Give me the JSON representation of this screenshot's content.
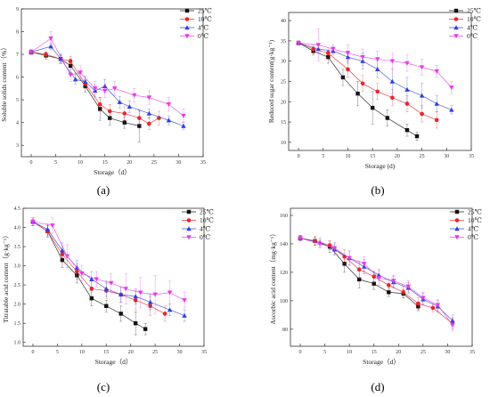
{
  "colors": {
    "25C": "#111111",
    "10C": "#e8262a",
    "4C": "#2f3fdc",
    "0C": "#e83ae6"
  },
  "chart_data": [
    {
      "id": "a",
      "label": "(a)",
      "type": "line",
      "xlabel": "Storage（d）",
      "ylabel": "Soluble solids content（%）",
      "xlim": [
        -2,
        35
      ],
      "ylim": [
        2.5,
        9
      ],
      "xticks": [
        "0",
        "5",
        "10",
        "15",
        "20",
        "25",
        "30",
        "35"
      ],
      "yticks": [
        "3",
        "4",
        "5",
        "6",
        "7",
        "8",
        "9"
      ],
      "legend": "top-right",
      "series": [
        {
          "name": "25℃",
          "marker": "square",
          "color": "#111111",
          "x": [
            0,
            3,
            6,
            8,
            11,
            14,
            16,
            19,
            22
          ],
          "y": [
            7.1,
            6.95,
            6.8,
            6.5,
            5.6,
            4.6,
            4.2,
            4.0,
            3.85
          ],
          "err": [
            0.1,
            0.15,
            0.2,
            0.3,
            0.25,
            0.5,
            0.3,
            0.25,
            0.7
          ]
        },
        {
          "name": "10℃",
          "marker": "circle",
          "color": "#e8262a",
          "x": [
            0,
            3,
            6,
            8,
            11,
            14,
            16,
            19,
            22,
            24,
            26
          ],
          "y": [
            7.1,
            7.0,
            6.8,
            6.7,
            5.7,
            4.8,
            4.5,
            4.4,
            4.2,
            3.95,
            4.2
          ],
          "err": [
            0.1,
            0.1,
            0.15,
            0.2,
            0.2,
            0.3,
            0.3,
            0.3,
            0.3,
            0.25,
            0.3
          ]
        },
        {
          "name": "4℃",
          "marker": "triangle-up",
          "color": "#2f3fdc",
          "x": [
            0,
            4,
            6,
            9,
            11,
            13,
            15,
            18,
            20,
            24,
            28,
            31
          ],
          "y": [
            7.1,
            7.35,
            6.8,
            5.9,
            5.8,
            5.4,
            5.6,
            4.9,
            4.7,
            4.4,
            4.1,
            3.85
          ],
          "err": [
            0.1,
            0.15,
            0.2,
            0.2,
            0.25,
            0.25,
            0.3,
            0.25,
            0.25,
            0.2,
            0.2,
            0.15
          ]
        },
        {
          "name": "0℃",
          "marker": "triangle-down",
          "color": "#e83ae6",
          "x": [
            0,
            4,
            8,
            10,
            13,
            15,
            17,
            21,
            24,
            28,
            31
          ],
          "y": [
            7.1,
            7.7,
            6.1,
            6.2,
            5.5,
            5.4,
            5.5,
            5.2,
            5.1,
            4.8,
            4.3
          ],
          "err": [
            0.1,
            0.3,
            0.3,
            0.3,
            0.3,
            0.3,
            0.3,
            0.3,
            0.3,
            0.3,
            0.3
          ]
        }
      ]
    },
    {
      "id": "b",
      "label": "(b)",
      "type": "line",
      "xlabel": "Storage (d)",
      "ylabel": "Reduced sugar content(g·kg⁻¹)",
      "xlim": [
        -2,
        35
      ],
      "ylim": [
        8,
        42
      ],
      "xticks": [
        "0",
        "5",
        "10",
        "15",
        "20",
        "25",
        "30",
        "35"
      ],
      "yticks": [
        "10",
        "15",
        "20",
        "25",
        "30",
        "35",
        "40"
      ],
      "legend": "top-right",
      "series": [
        {
          "name": "25℃",
          "marker": "square",
          "color": "#111111",
          "x": [
            0,
            3,
            6,
            9,
            12,
            15,
            18,
            22,
            24
          ],
          "y": [
            34.5,
            32.5,
            31.0,
            26.0,
            22.0,
            18.5,
            16.0,
            13.0,
            11.5
          ],
          "err": [
            0.5,
            1.0,
            1.5,
            2.0,
            3.0,
            4.0,
            2.0,
            1.5,
            1.0
          ]
        },
        {
          "name": "10℃",
          "marker": "circle",
          "color": "#e8262a",
          "x": [
            0,
            3,
            6,
            10,
            13,
            16,
            19,
            22,
            25,
            28
          ],
          "y": [
            34.5,
            33.0,
            32.0,
            28.0,
            24.5,
            22.5,
            21.0,
            19.5,
            17.0,
            15.5
          ],
          "err": [
            0.5,
            1.0,
            1.0,
            2.0,
            2.0,
            2.0,
            2.0,
            2.0,
            2.0,
            2.0
          ]
        },
        {
          "name": "4℃",
          "marker": "triangle-up",
          "color": "#2f3fdc",
          "x": [
            0,
            4,
            7,
            10,
            13,
            16,
            19,
            22,
            25,
            28,
            31
          ],
          "y": [
            34.5,
            33.0,
            32.5,
            31.0,
            30.0,
            28.0,
            25.0,
            23.0,
            21.5,
            19.5,
            18.0
          ],
          "err": [
            0.5,
            1.0,
            1.0,
            1.5,
            2.0,
            2.0,
            3.0,
            3.0,
            3.0,
            2.0,
            1.0
          ]
        },
        {
          "name": "0℃",
          "marker": "triangle-down",
          "color": "#e83ae6",
          "x": [
            0,
            4,
            7,
            10,
            13,
            16,
            19,
            22,
            25,
            28,
            31
          ],
          "y": [
            34.5,
            34.0,
            33.0,
            32.0,
            31.0,
            30.5,
            30.0,
            29.5,
            28.5,
            27.5,
            23.5
          ],
          "err": [
            0.5,
            4.0,
            1.0,
            2.0,
            2.0,
            2.0,
            2.0,
            2.0,
            2.0,
            1.5,
            1.5
          ]
        }
      ]
    },
    {
      "id": "c",
      "label": "(c)",
      "type": "line",
      "xlabel": "Storage（d）",
      "ylabel": "Titratable acid content（g·kg⁻¹）",
      "xlim": [
        -2,
        35
      ],
      "ylim": [
        0.9,
        4.5
      ],
      "xticks": [
        "0",
        "5",
        "10",
        "15",
        "20",
        "25",
        "30",
        "35"
      ],
      "yticks": [
        "1.0",
        "1.5",
        "2.0",
        "2.5",
        "3.0",
        "3.5",
        "4.0",
        "4.5"
      ],
      "legend": "top-right",
      "series": [
        {
          "name": "25℃",
          "marker": "square",
          "color": "#111111",
          "x": [
            0,
            3,
            6,
            9,
            12,
            15,
            18,
            21,
            23
          ],
          "y": [
            4.15,
            3.9,
            3.15,
            2.75,
            2.15,
            1.95,
            1.75,
            1.5,
            1.35
          ],
          "err": [
            0.1,
            0.15,
            0.2,
            0.2,
            0.2,
            0.15,
            0.2,
            0.3,
            0.15
          ]
        },
        {
          "name": "10℃",
          "marker": "circle",
          "color": "#e8262a",
          "x": [
            0,
            3,
            6,
            9,
            12,
            15,
            18,
            21,
            24,
            27
          ],
          "y": [
            4.15,
            3.9,
            3.3,
            2.85,
            2.4,
            2.35,
            2.25,
            2.1,
            1.95,
            1.75
          ],
          "err": [
            0.1,
            0.15,
            0.2,
            0.2,
            0.2,
            0.2,
            0.2,
            0.25,
            0.25,
            0.2
          ]
        },
        {
          "name": "4℃",
          "marker": "triangle-up",
          "color": "#2f3fdc",
          "x": [
            0,
            3,
            6,
            9,
            12,
            15,
            18,
            21,
            24,
            28,
            31
          ],
          "y": [
            4.15,
            3.95,
            3.4,
            2.95,
            2.65,
            2.4,
            2.25,
            2.2,
            2.05,
            1.85,
            1.7
          ],
          "err": [
            0.1,
            0.15,
            0.2,
            0.2,
            0.2,
            0.2,
            0.2,
            0.2,
            0.2,
            0.15,
            0.15
          ]
        },
        {
          "name": "0℃",
          "marker": "triangle-down",
          "color": "#e83ae6",
          "x": [
            0,
            4,
            7,
            10,
            13,
            16,
            19,
            22,
            25,
            28,
            31
          ],
          "y": [
            4.15,
            4.05,
            3.25,
            2.8,
            2.65,
            2.55,
            2.4,
            2.3,
            2.25,
            2.3,
            2.1
          ],
          "err": [
            0.1,
            0.2,
            0.3,
            0.2,
            0.2,
            0.25,
            0.4,
            0.4,
            0.5,
            0.3,
            0.2
          ]
        }
      ]
    },
    {
      "id": "d",
      "label": "(d)",
      "type": "line",
      "xlabel": "Storage（d）",
      "ylabel": "Ascorbic acid content（mg·kg⁻¹）",
      "xlim": [
        -2,
        35
      ],
      "ylim": [
        68,
        165
      ],
      "xticks": [
        "0",
        "5",
        "10",
        "15",
        "20",
        "25",
        "30",
        "35"
      ],
      "yticks": [
        "80",
        "100",
        "120",
        "140",
        "160"
      ],
      "legend": "top-right",
      "series": [
        {
          "name": "25℃",
          "marker": "square",
          "color": "#111111",
          "x": [
            0,
            3,
            6,
            9,
            12,
            15,
            18,
            21,
            24
          ],
          "y": [
            144,
            142,
            138,
            126,
            115,
            112,
            106,
            105,
            96
          ],
          "err": [
            2,
            3,
            4,
            6,
            6,
            4,
            3,
            3,
            3
          ]
        },
        {
          "name": "10℃",
          "marker": "circle",
          "color": "#e8262a",
          "x": [
            0,
            3,
            6,
            9,
            12,
            15,
            18,
            21,
            24,
            27,
            31
          ],
          "y": [
            144,
            142,
            139,
            131,
            122,
            117,
            111,
            106,
            98,
            95,
            84
          ],
          "err": [
            2,
            3,
            3,
            5,
            6,
            4,
            4,
            4,
            4,
            3,
            4
          ]
        },
        {
          "name": "4℃",
          "marker": "triangle-up",
          "color": "#2f3fdc",
          "x": [
            0,
            4,
            7,
            10,
            13,
            16,
            19,
            22,
            25,
            28,
            31
          ],
          "y": [
            144,
            141,
            136,
            130,
            124,
            118,
            113,
            109,
            101,
            96,
            86
          ],
          "err": [
            2,
            3,
            4,
            5,
            5,
            4,
            4,
            4,
            4,
            4,
            4
          ]
        },
        {
          "name": "0℃",
          "marker": "triangle-down",
          "color": "#e83ae6",
          "x": [
            0,
            4,
            7,
            10,
            13,
            16,
            19,
            22,
            25,
            28,
            31
          ],
          "y": [
            144,
            140,
            137,
            130,
            126,
            116,
            114,
            110,
            102,
            97,
            83
          ],
          "err": [
            2,
            3,
            4,
            5,
            5,
            5,
            4,
            4,
            4,
            4,
            4
          ]
        }
      ]
    }
  ]
}
